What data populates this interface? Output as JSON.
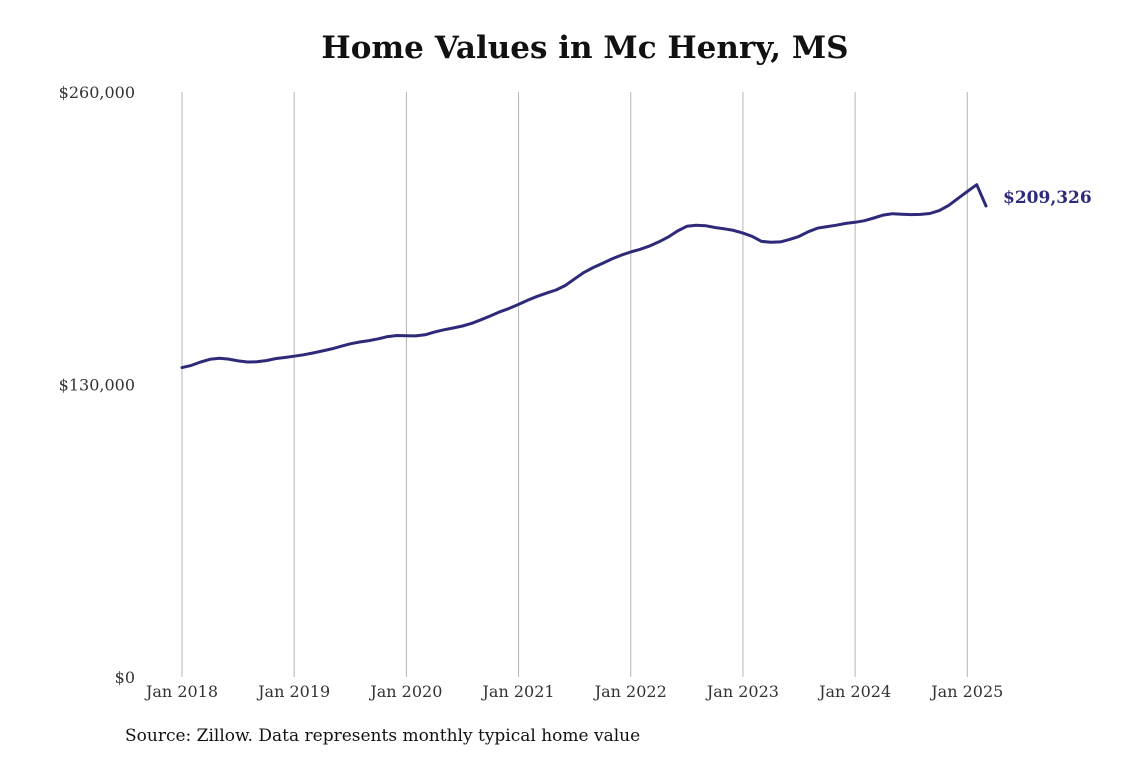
{
  "chart_data": {
    "type": "line",
    "title": "Home Values in Mc Henry, MS",
    "xlabel": "",
    "ylabel": "",
    "ylim": [
      0,
      260000
    ],
    "yticks": [
      0,
      130000,
      260000
    ],
    "ytick_labels": [
      "$0",
      "$130,000",
      "$260,000"
    ],
    "xlim": [
      "2018-01",
      "2025-03"
    ],
    "xticks": [
      "2018-01",
      "2019-01",
      "2020-01",
      "2021-01",
      "2022-01",
      "2023-01",
      "2024-01",
      "2025-01"
    ],
    "xtick_labels": [
      "Jan 2018",
      "Jan 2019",
      "Jan 2020",
      "Jan 2021",
      "Jan 2022",
      "Jan 2023",
      "Jan 2024",
      "Jan 2025"
    ],
    "grid": "vertical",
    "end_label": "$209,326",
    "line_color": "#2e2a7a",
    "series": [
      {
        "x": [
          "2018-01",
          "2018-02",
          "2018-03",
          "2018-04",
          "2018-05",
          "2018-06",
          "2018-07",
          "2018-08",
          "2018-09",
          "2018-10",
          "2018-11",
          "2018-12",
          "2019-01",
          "2019-02",
          "2019-03",
          "2019-04",
          "2019-05",
          "2019-06",
          "2019-07",
          "2019-08",
          "2019-09",
          "2019-10",
          "2019-11",
          "2019-12",
          "2020-01",
          "2020-02",
          "2020-03",
          "2020-04",
          "2020-05",
          "2020-06",
          "2020-07",
          "2020-08",
          "2020-09",
          "2020-10",
          "2020-11",
          "2020-12",
          "2021-01",
          "2021-02",
          "2021-03",
          "2021-04",
          "2021-05",
          "2021-06",
          "2021-07",
          "2021-08",
          "2021-09",
          "2021-10",
          "2021-11",
          "2021-12",
          "2022-01",
          "2022-02",
          "2022-03",
          "2022-04",
          "2022-05",
          "2022-06",
          "2022-07",
          "2022-08",
          "2022-09",
          "2022-10",
          "2022-11",
          "2022-12",
          "2023-01",
          "2023-02",
          "2023-03",
          "2023-04",
          "2023-05",
          "2023-06",
          "2023-07",
          "2023-08",
          "2023-09",
          "2023-10",
          "2023-11",
          "2023-12",
          "2024-01",
          "2024-02",
          "2024-03",
          "2024-04",
          "2024-05",
          "2024-06",
          "2024-07",
          "2024-08",
          "2024-09",
          "2024-10",
          "2024-11",
          "2024-12",
          "2025-01",
          "2025-02",
          "2025-03"
        ],
        "values": [
          137500,
          138500,
          140000,
          141200,
          141700,
          141300,
          140500,
          140000,
          140100,
          140600,
          141500,
          142000,
          142600,
          143200,
          144000,
          144900,
          145800,
          147000,
          148100,
          148900,
          149500,
          150300,
          151300,
          151800,
          151700,
          151600,
          152100,
          153300,
          154300,
          155100,
          156000,
          157200,
          158800,
          160500,
          162300,
          163800,
          165600,
          167500,
          169200,
          170600,
          172000,
          174000,
          177000,
          179800,
          182000,
          183900,
          185800,
          187500,
          188900,
          190100,
          191500,
          193400,
          195500,
          198200,
          200300,
          200800,
          200600,
          199800,
          199200,
          198500,
          197300,
          195800,
          193600,
          193200,
          193400,
          194500,
          195800,
          197900,
          199500,
          200200,
          200800,
          201600,
          202100,
          202800,
          204000,
          205300,
          205900,
          205700,
          205500,
          205600,
          206000,
          207300,
          209600,
          212700,
          215800,
          218800,
          209326
        ]
      }
    ]
  },
  "source_note": "Source: Zillow. Data represents monthly typical home value"
}
